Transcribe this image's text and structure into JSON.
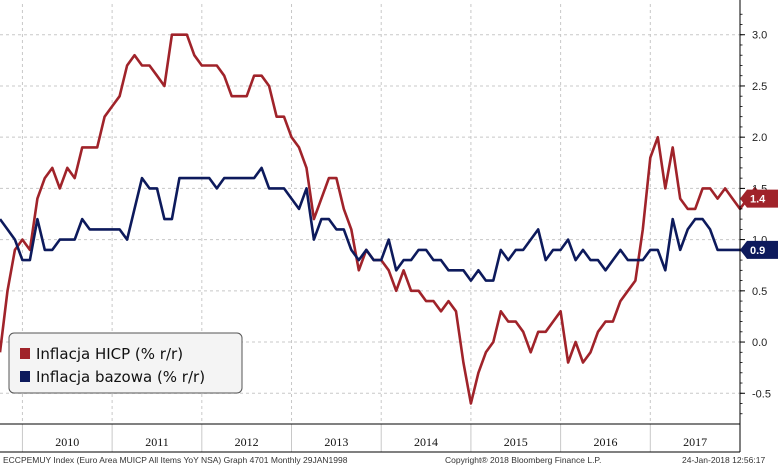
{
  "chart_data": {
    "type": "line",
    "x_start": "2009-10",
    "x_end": "2018-01",
    "year_labels": [
      "2010",
      "2011",
      "2012",
      "2013",
      "2014",
      "2015",
      "2016",
      "2017"
    ],
    "ylim": [
      -0.8,
      3.3
    ],
    "y_ticks": [
      3.0,
      2.5,
      2.0,
      1.5,
      1.0,
      0.5,
      0.0,
      -0.5
    ],
    "y_tick_labels": [
      "3.0",
      "2.5",
      "2.0",
      "1.5",
      "1.0",
      "0.5",
      "0.0",
      "-0.5"
    ],
    "grid": true,
    "legend_position": "bottom-left",
    "series": [
      {
        "name": "Inflacja HICP (% r/r)",
        "color": "#a0232a",
        "last_value_label": "1.4",
        "values": [
          -0.1,
          0.5,
          0.9,
          1.0,
          0.9,
          1.4,
          1.6,
          1.7,
          1.5,
          1.7,
          1.6,
          1.9,
          1.9,
          1.9,
          2.2,
          2.3,
          2.4,
          2.7,
          2.8,
          2.7,
          2.7,
          2.6,
          2.5,
          3.0,
          3.0,
          3.0,
          2.8,
          2.7,
          2.7,
          2.7,
          2.6,
          2.4,
          2.4,
          2.4,
          2.6,
          2.6,
          2.5,
          2.2,
          2.2,
          2.0,
          1.9,
          1.7,
          1.2,
          1.4,
          1.6,
          1.6,
          1.3,
          1.1,
          0.7,
          0.9,
          0.8,
          0.8,
          0.7,
          0.5,
          0.7,
          0.5,
          0.5,
          0.4,
          0.4,
          0.3,
          0.4,
          0.3,
          -0.2,
          -0.6,
          -0.3,
          -0.1,
          0.0,
          0.3,
          0.2,
          0.2,
          0.1,
          -0.1,
          0.1,
          0.1,
          0.2,
          0.3,
          -0.2,
          0.0,
          -0.2,
          -0.1,
          0.1,
          0.2,
          0.2,
          0.4,
          0.5,
          0.6,
          1.1,
          1.8,
          2.0,
          1.5,
          1.9,
          1.4,
          1.3,
          1.3,
          1.5,
          1.5,
          1.4,
          1.5,
          1.4
        ],
        "tail": [
          1.3,
          1.4,
          1.5,
          1.4
        ]
      },
      {
        "name": "Inflacja bazowa (% r/r)",
        "color": "#0d1a5c",
        "last_value_label": "0.9",
        "values": [
          1.2,
          1.1,
          1.0,
          0.8,
          0.8,
          1.2,
          0.9,
          0.9,
          1.0,
          1.0,
          1.0,
          1.2,
          1.1,
          1.1,
          1.1,
          1.1,
          1.1,
          1.0,
          1.3,
          1.6,
          1.5,
          1.5,
          1.2,
          1.2,
          1.6,
          1.6,
          1.6,
          1.6,
          1.6,
          1.5,
          1.6,
          1.6,
          1.6,
          1.6,
          1.6,
          1.7,
          1.5,
          1.5,
          1.5,
          1.4,
          1.3,
          1.5,
          1.0,
          1.2,
          1.2,
          1.1,
          1.1,
          0.9,
          0.8,
          0.9,
          0.8,
          0.8,
          1.0,
          0.7,
          0.8,
          0.8,
          0.9,
          0.9,
          0.8,
          0.8,
          0.7,
          0.7,
          0.7,
          0.6,
          0.7,
          0.6,
          0.6,
          0.9,
          0.8,
          0.9,
          0.9,
          1.0,
          1.1,
          0.8,
          0.9,
          0.9,
          1.0,
          0.8,
          0.9,
          0.8,
          0.8,
          0.7,
          0.8,
          0.9,
          0.8,
          0.8,
          0.8,
          0.9,
          0.9,
          0.7,
          1.2,
          0.9,
          1.1,
          1.2,
          1.2,
          1.1,
          0.9,
          0.9,
          0.9
        ],
        "tail": [
          0.9,
          0.9,
          0.9,
          0.9
        ]
      }
    ]
  },
  "footer": {
    "left": "ECCPEMUY Index (Euro Area MUICP All Items YoY NSA) Graph 4701  Monthly 29JAN1998",
    "center": "Copyright® 2018 Bloomberg Finance L.P.",
    "right": "24-Jan-2018 12:56:17"
  },
  "colors": {
    "grid": "#c8c8c8",
    "axis": "#000000",
    "legend_border": "#555555",
    "legend_bg": "#f4f4f4"
  }
}
